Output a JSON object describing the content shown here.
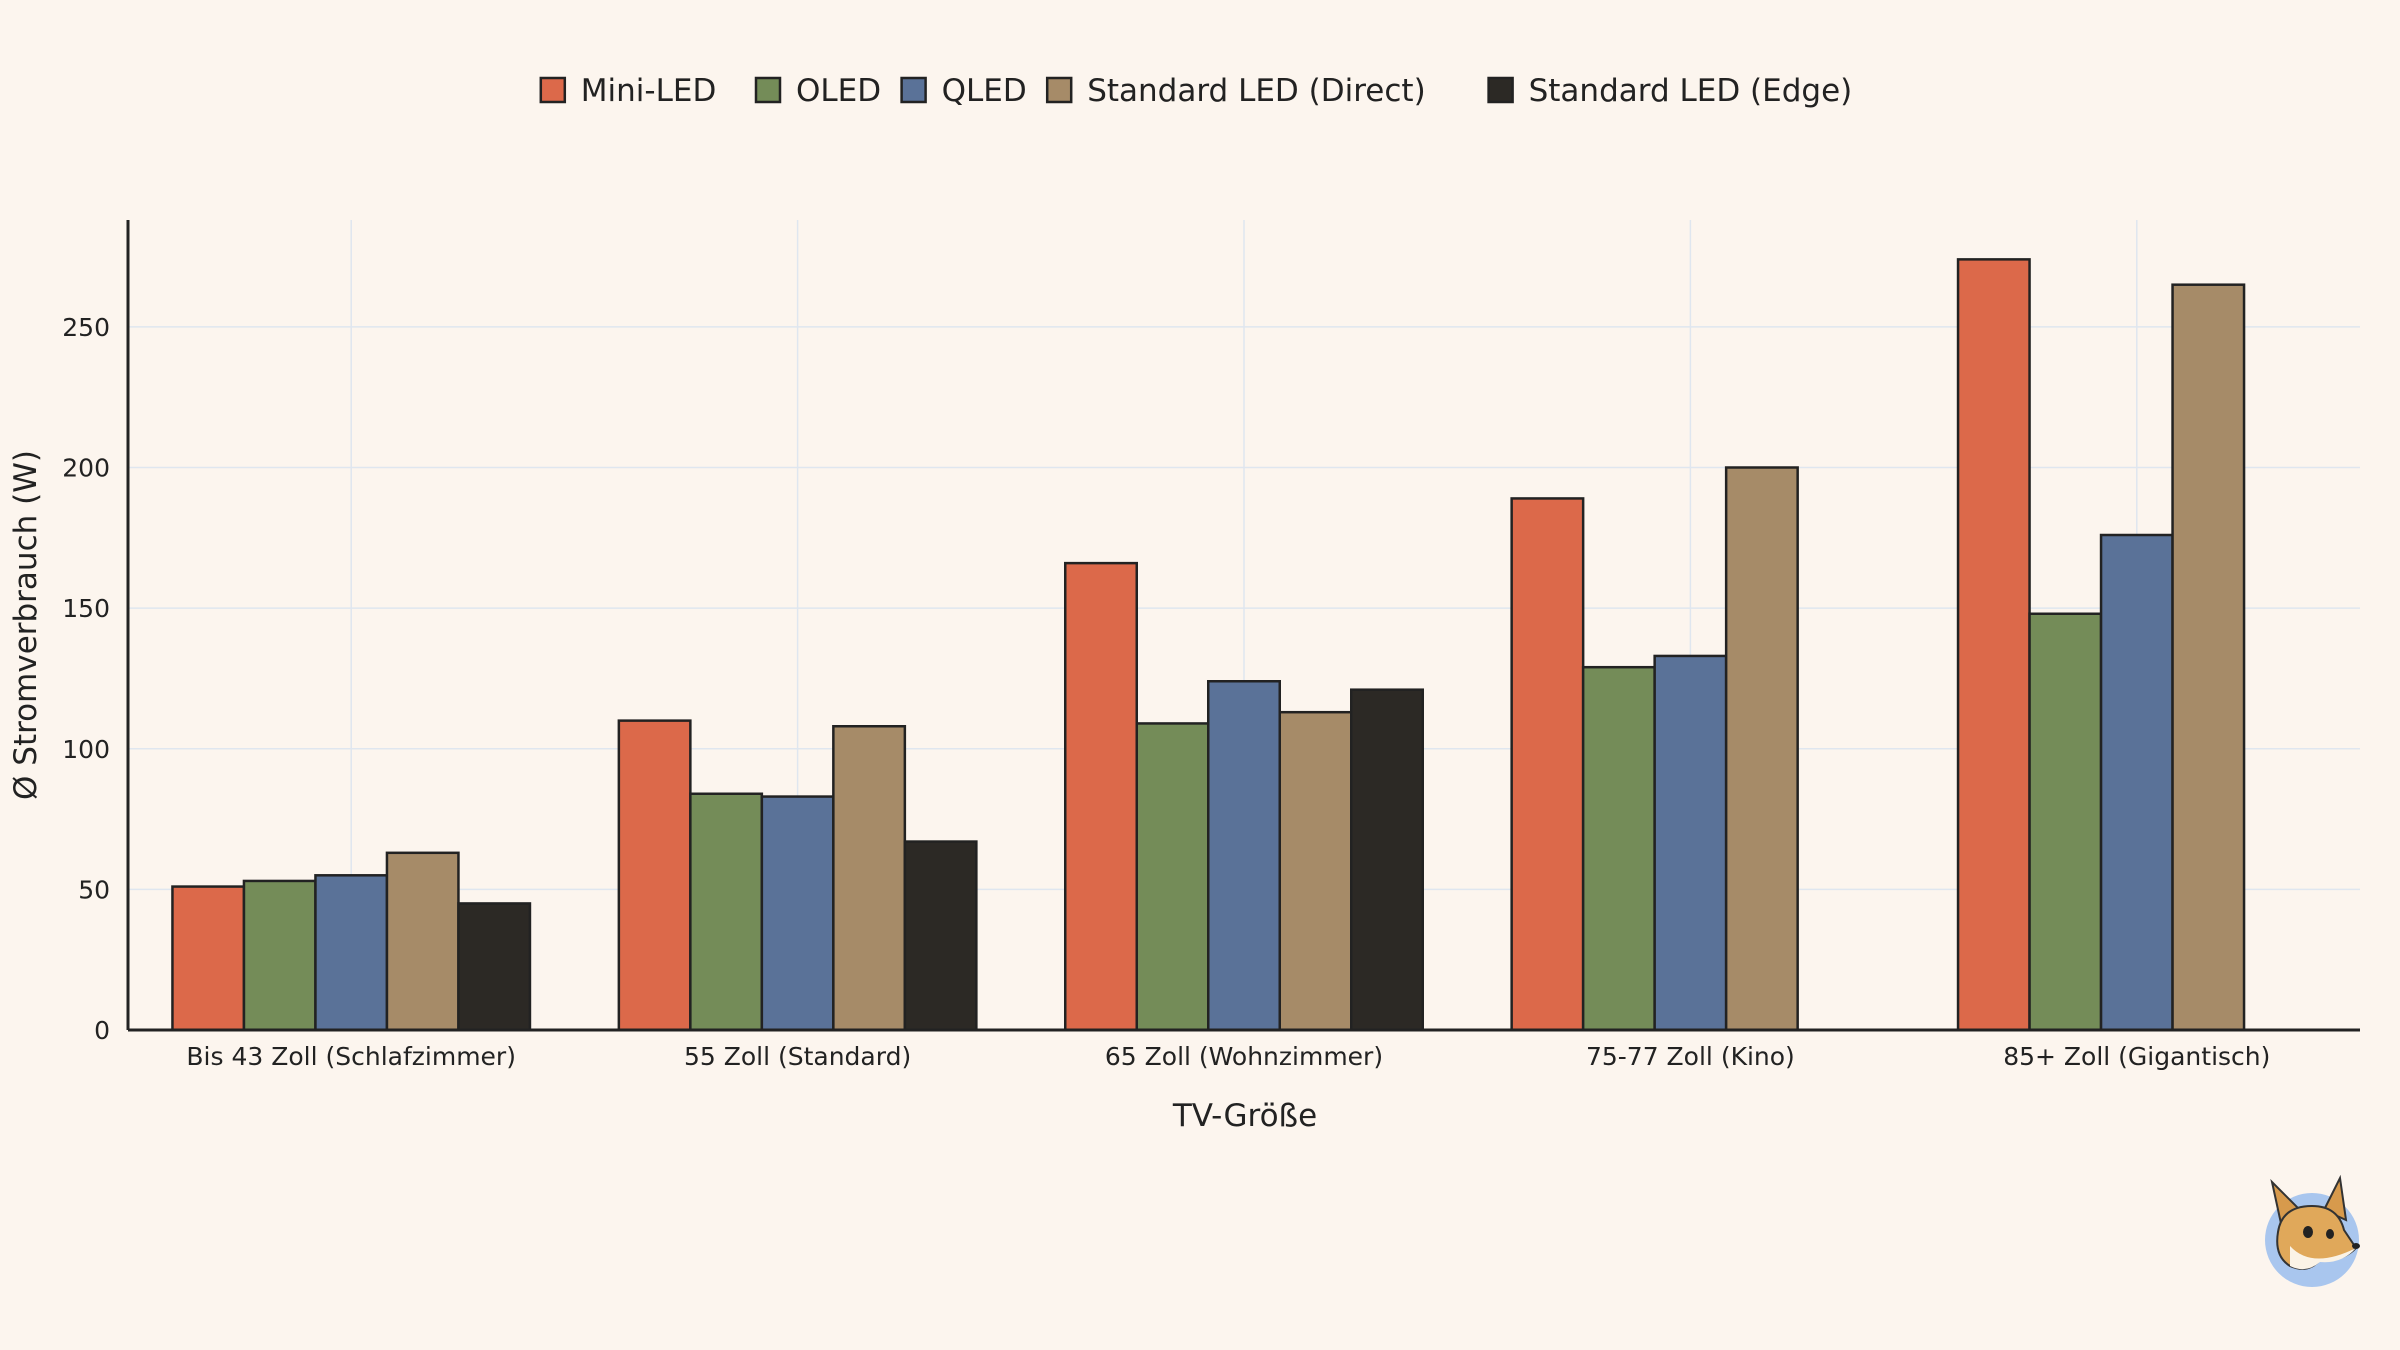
{
  "chart_data": {
    "type": "bar",
    "title": "",
    "xlabel": "TV-Größe",
    "ylabel": "Ø Stromverbrauch (W)",
    "ylim": [
      0,
      288
    ],
    "yticks": [
      0,
      50,
      100,
      150,
      200,
      250
    ],
    "grid": true,
    "legend_position": "top-center",
    "categories": [
      "Bis 43 Zoll (Schlafzimmer)",
      "55 Zoll (Standard)",
      "65 Zoll (Wohnzimmer)",
      "75-77 Zoll (Kino)",
      "85+ Zoll (Gigantisch)"
    ],
    "series": [
      {
        "name": "Mini-LED",
        "color": "#dc694a",
        "values": [
          51,
          110,
          166,
          189,
          274
        ]
      },
      {
        "name": "OLED",
        "color": "#748c58",
        "values": [
          53,
          84,
          109,
          129,
          148
        ]
      },
      {
        "name": "QLED",
        "color": "#5a7298",
        "values": [
          55,
          83,
          124,
          133,
          176
        ]
      },
      {
        "name": "Standard LED (Direct)",
        "color": "#a68b68",
        "values": [
          63,
          108,
          113,
          200,
          265
        ]
      },
      {
        "name": "Standard LED (Edge)",
        "color": "#2c2925",
        "values": [
          45,
          67,
          121,
          null,
          null
        ]
      }
    ]
  },
  "watermark": {
    "icon": "fox-mascot-icon"
  }
}
